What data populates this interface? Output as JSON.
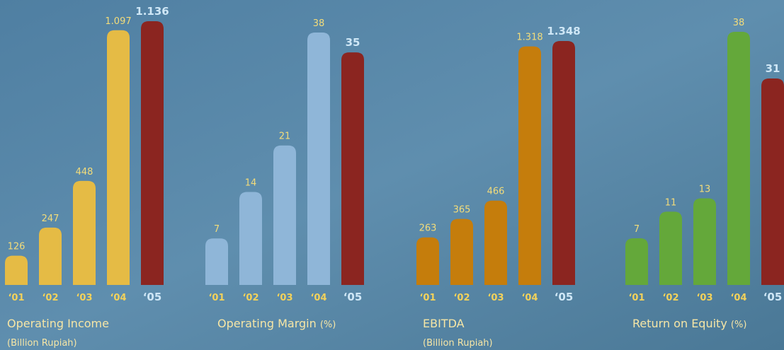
{
  "chart_data": [
    {
      "type": "bar",
      "title": "Operating Income",
      "subtitle": "(Billion Rupiah)",
      "categories": [
        "‘01",
        "‘02",
        "‘03",
        "‘04",
        "‘05"
      ],
      "values": [
        126,
        247,
        448,
        1097,
        1136
      ],
      "value_labels": [
        "126",
        "247",
        "448",
        "1.097",
        "1.136"
      ],
      "colors": [
        "#e5bb45",
        "#e5bb45",
        "#e5bb45",
        "#e5bb45",
        "#8b2520"
      ]
    },
    {
      "type": "bar",
      "title": "Operating Margin",
      "unit": "(%)",
      "categories": [
        "‘01",
        "‘02",
        "‘03",
        "‘04",
        "‘05"
      ],
      "values": [
        7,
        14,
        21,
        38,
        35
      ],
      "colors": [
        "#8fb6d8",
        "#8fb6d8",
        "#8fb6d8",
        "#8fb6d8",
        "#8b2520"
      ]
    },
    {
      "type": "bar",
      "title": "EBITDA",
      "subtitle": "(Billion Rupiah)",
      "categories": [
        "‘01",
        "‘02",
        "‘03",
        "‘04",
        "‘05"
      ],
      "values": [
        263,
        365,
        466,
        1318,
        1348
      ],
      "value_labels": [
        "263",
        "365",
        "466",
        "1.318",
        "1.348"
      ],
      "colors": [
        "#c57d0c",
        "#c57d0c",
        "#c57d0c",
        "#c57d0c",
        "#8b2520"
      ]
    },
    {
      "type": "bar",
      "title": "Return on Equity",
      "unit": "(%)",
      "categories": [
        "‘01",
        "‘02",
        "‘03",
        "‘04",
        "‘05"
      ],
      "values": [
        7,
        11,
        13,
        38,
        31
      ],
      "colors": [
        "#64a83a",
        "#64a83a",
        "#64a83a",
        "#64a83a",
        "#8b2520"
      ]
    }
  ]
}
